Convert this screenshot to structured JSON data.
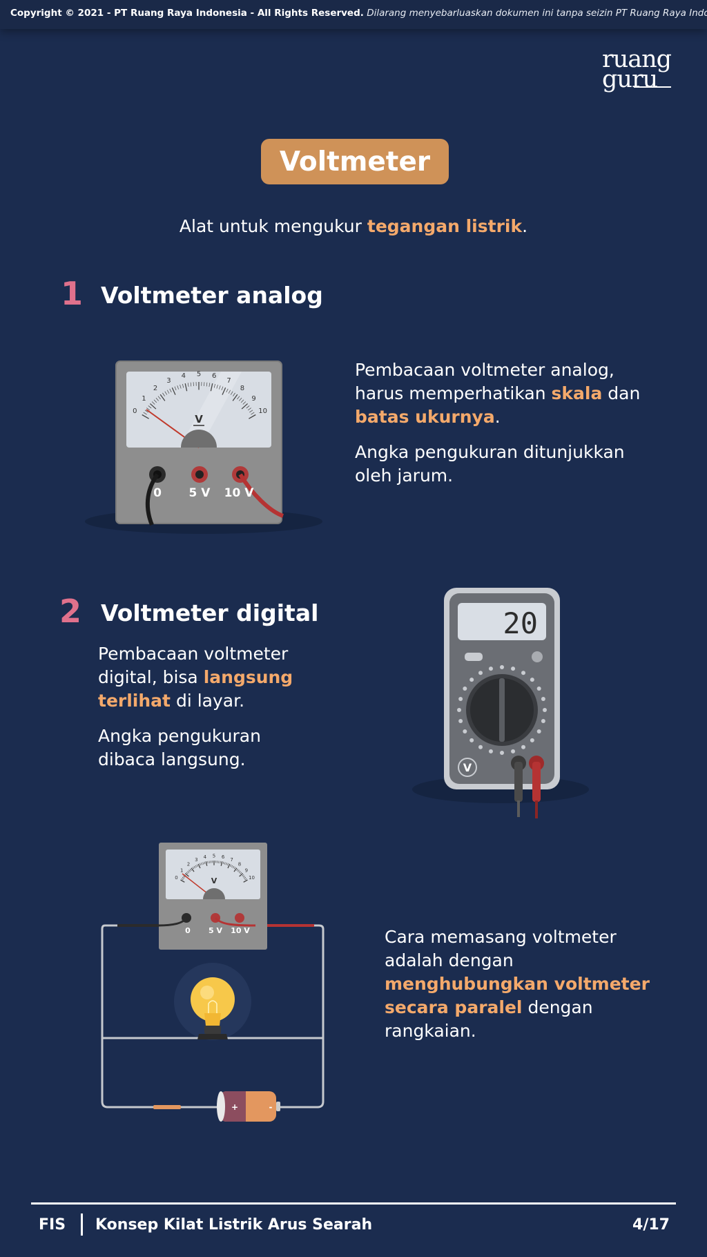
{
  "header": {
    "copyright_bold": "Copyright © 2021 - PT Ruang Raya Indonesia - All Rights Reserved.",
    "copyright_italic": "Dilarang menyebarluaskan dokumen ini tanpa seizin PT Ruang Raya Indonesia."
  },
  "logo": {
    "line1": "ruang",
    "line2": "guru"
  },
  "title": "Voltmeter",
  "subtitle": {
    "pre": "Alat untuk mengukur ",
    "highlight": "tegangan listrik",
    "post": "."
  },
  "section1": {
    "number": "1",
    "heading": "Voltmeter analog",
    "p1_pre": "Pembacaan voltmeter analog, harus memperhatikan ",
    "p1_hl1": "skala",
    "p1_mid": " dan ",
    "p1_hl2": "batas ukurnya",
    "p1_post": ".",
    "p2": "Angka pengukuran ditunjukkan oleh jarum."
  },
  "section2": {
    "number": "2",
    "heading": "Voltmeter digital",
    "p1_pre": "Pembacaan voltmeter digital, bisa ",
    "p1_hl": "langsung terlihat",
    "p1_post": " di layar.",
    "p2": "Angka pengukuran dibaca langsung."
  },
  "section3": {
    "p_pre": "Cara memasang voltmeter adalah dengan ",
    "p_hl": "menghubungkan voltmeter secara paralel",
    "p_post": " dengan rangkaian."
  },
  "analog_meter": {
    "scale": [
      "0",
      "1",
      "2",
      "3",
      "4",
      "5",
      "6",
      "7",
      "8",
      "9",
      "10"
    ],
    "unit": "V",
    "terminals": [
      "0",
      "5 V",
      "10 V"
    ]
  },
  "digital_meter": {
    "reading": "20",
    "badge": "V"
  },
  "battery": {
    "plus": "+",
    "minus": "-"
  },
  "footer": {
    "subject": "FIS",
    "title": "Konsep Kilat Listrik Arus Searah",
    "page": "4/17"
  },
  "colors": {
    "background": "#1b2c4f",
    "accent": "#cf9258",
    "highlight": "#f4a96b",
    "number": "#e0718c"
  }
}
